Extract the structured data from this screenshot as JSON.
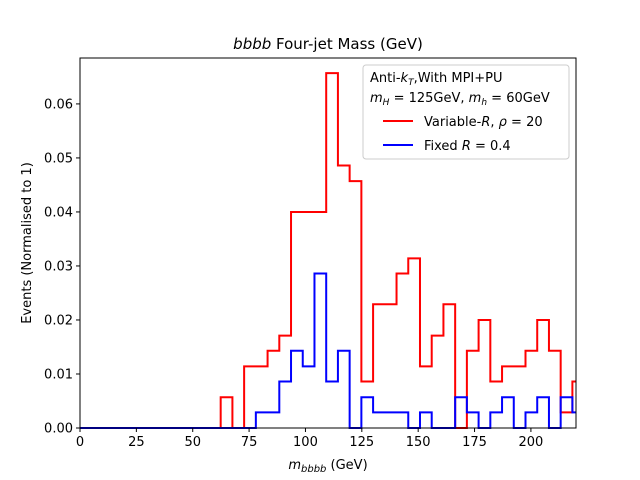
{
  "chart_data": {
    "type": "step",
    "title": "bbbb Four-jet Mass (GeV)",
    "title_parts": {
      "italic": "bbbb",
      "rest": " Four-jet Mass (GeV)"
    },
    "xlabel": "m_bbbb (GeV)",
    "xlabel_parts": {
      "main": "m",
      "sub": "bbbb",
      "rest": " (GeV)"
    },
    "ylabel": "Events (Normalised to 1)",
    "xlim": [
      0,
      220
    ],
    "ylim": [
      0,
      0.0685
    ],
    "xticks": [
      0,
      25,
      50,
      75,
      100,
      125,
      150,
      175,
      200
    ],
    "xtick_labels": [
      "0",
      "25",
      "50",
      "75",
      "100",
      "125",
      "150",
      "175",
      "200"
    ],
    "yticks": [
      0,
      0.01,
      0.02,
      0.03,
      0.04,
      0.05,
      0.06
    ],
    "ytick_labels": [
      "0.00",
      "0.01",
      "0.02",
      "0.03",
      "0.04",
      "0.05",
      "0.06"
    ],
    "bin_edges": [
      0,
      5.2,
      10.4,
      15.6,
      20.8,
      26,
      31.2,
      36.4,
      41.6,
      46.8,
      52,
      57.2,
      62.4,
      67.6,
      72.8,
      78,
      83.2,
      88.4,
      93.6,
      98.8,
      104,
      109.2,
      114.4,
      119.6,
      124.8,
      130,
      135.2,
      140.4,
      145.6,
      150.8,
      156,
      161.2,
      166.4,
      171.6,
      176.8,
      182,
      187.2,
      192.4,
      197.6,
      202.8,
      208,
      213.2,
      218.4
    ],
    "legend": {
      "header_line1": "Anti-kT,With MPI+PU",
      "header_line1_parts": {
        "a": "Anti-",
        "k": "k",
        "sub": "T",
        "b": ",With MPI+PU"
      },
      "header_line2": "mH = 125GeV, mh = 60GeV",
      "header_line2_parts": {
        "m1": "m",
        "s1": "H",
        "eq1": " = 125GeV, ",
        "m2": "m",
        "s2": "h",
        "eq2": " = 60GeV"
      },
      "location": "upper right"
    },
    "series": [
      {
        "name": "Variable-R, ρ = 20",
        "name_parts": {
          "a": "Variable-",
          "R": "R",
          "b": ", ",
          "rho": "ρ",
          "c": " = 20"
        },
        "color": "#ff0000",
        "values": [
          0,
          0,
          0,
          0,
          0,
          0,
          0,
          0,
          0,
          0,
          0,
          0,
          0.0057,
          0,
          0.0114,
          0.0114,
          0.0143,
          0.0171,
          0.04,
          0.04,
          0.04,
          0.0657,
          0.0486,
          0.0457,
          0.0086,
          0.0229,
          0.0229,
          0.0286,
          0.0314,
          0.0114,
          0.0171,
          0.0229,
          0,
          0.0143,
          0.02,
          0.0086,
          0.0114,
          0.0114,
          0.0143,
          0.02,
          0.0143,
          0.0029,
          0.0086
        ]
      },
      {
        "name": "Fixed R = 0.4",
        "name_parts": {
          "a": "Fixed ",
          "R": "R",
          "b": " = 0.4"
        },
        "color": "#0000ff",
        "values": [
          0,
          0,
          0,
          0,
          0,
          0,
          0,
          0,
          0,
          0,
          0,
          0,
          0,
          0,
          0,
          0.0029,
          0.0029,
          0.0086,
          0.0143,
          0.0114,
          0.0286,
          0.0086,
          0.0143,
          0,
          0.0057,
          0.0029,
          0.0029,
          0.0029,
          0,
          0.0029,
          0,
          0,
          0.0057,
          0.0029,
          0,
          0.0029,
          0.0057,
          0,
          0.0029,
          0.0057,
          0,
          0.0057,
          0.0029
        ]
      }
    ]
  }
}
